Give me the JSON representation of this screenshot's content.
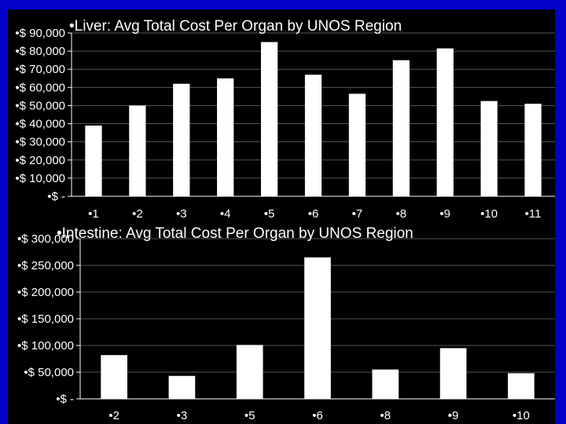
{
  "chart_data": [
    {
      "type": "bar",
      "title": "Liver:  Avg Total Cost Per Organ by UNOS Region",
      "categories": [
        "1",
        "2",
        "3",
        "4",
        "5",
        "6",
        "7",
        "8",
        "9",
        "10",
        "11"
      ],
      "values": [
        39000,
        50000,
        62000,
        65000,
        85000,
        67000,
        56500,
        75000,
        81500,
        52500,
        51000
      ],
      "yticks": [
        "$ -",
        "$ 10,000",
        "$ 20,000",
        "$ 30,000",
        "$ 40,000",
        "$ 50,000",
        "$ 60,000",
        "$ 70,000",
        "$ 80,000",
        "$ 90,000"
      ],
      "ylim": [
        0,
        90000
      ],
      "grid": true,
      "colors": {
        "background": "#000000",
        "bar": "#ffffff",
        "gridline": "#555555"
      }
    },
    {
      "type": "bar",
      "title": "Intestine:  Avg Total Cost Per Organ by UNOS Region",
      "categories": [
        "2",
        "3",
        "5",
        "6",
        "8",
        "9",
        "10"
      ],
      "values": [
        82000,
        43000,
        101000,
        265000,
        55000,
        95000,
        48000
      ],
      "yticks": [
        "$ -",
        "$ 50,000",
        "$ 100,000",
        "$ 150,000",
        "$ 200,000",
        "$ 250,000",
        "$ 300,000"
      ],
      "ylim": [
        0,
        300000
      ],
      "grid": true,
      "colors": {
        "background": "#000000",
        "bar": "#ffffff",
        "gridline": "#555555"
      }
    }
  ],
  "slide": {
    "background": "#0000c8",
    "bullet": "•"
  }
}
